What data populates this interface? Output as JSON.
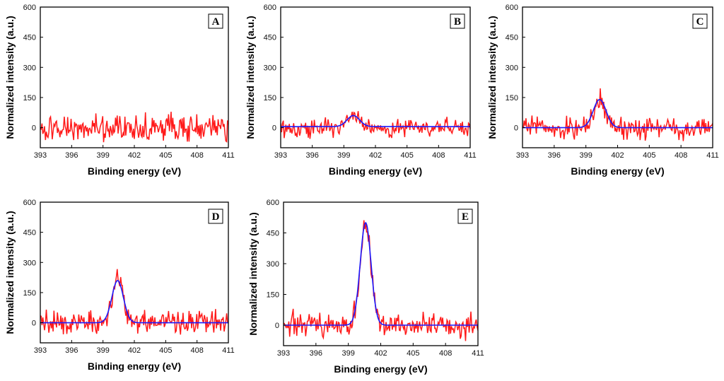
{
  "figure": {
    "x_title": "Binding energy (eV)",
    "y_title": "Normalized intensity (a.u.)",
    "x_ticks": [
      "393",
      "396",
      "399",
      "402",
      "405",
      "408",
      "411"
    ],
    "y_ticks": [
      "0",
      "150",
      "300",
      "450",
      "600"
    ]
  },
  "colors": {
    "raw": "#ff1a1a",
    "fit": "#1a1aff",
    "axis": "#000000"
  },
  "chart_data": [
    {
      "type": "line",
      "panel": "A",
      "title": "A",
      "xlabel": "Binding energy (eV)",
      "ylabel": "Normalized intensity (a.u.)",
      "xlim": [
        393,
        411
      ],
      "ylim": [
        -100,
        600
      ],
      "series": [
        {
          "name": "raw",
          "peak_center": 400.5,
          "peak_height": 0,
          "peak_sigma": 0.6,
          "noise": 45
        }
      ]
    },
    {
      "type": "line",
      "panel": "B",
      "title": "B",
      "xlabel": "Binding energy (eV)",
      "ylabel": "Normalized intensity (a.u.)",
      "xlim": [
        393,
        411
      ],
      "ylim": [
        -100,
        600
      ],
      "series": [
        {
          "name": "raw",
          "peak_center": 399.9,
          "peak_height": 55,
          "peak_sigma": 0.6,
          "noise": 30
        },
        {
          "name": "fit",
          "peak_center": 399.9,
          "peak_height": 55,
          "peak_sigma": 0.6,
          "baseline": 5
        }
      ]
    },
    {
      "type": "line",
      "panel": "C",
      "title": "C",
      "xlabel": "Binding energy (eV)",
      "ylabel": "Normalized intensity (a.u.)",
      "xlim": [
        393,
        411
      ],
      "ylim": [
        -100,
        600
      ],
      "series": [
        {
          "name": "raw",
          "peak_center": 400.3,
          "peak_height": 140,
          "peak_sigma": 0.6,
          "noise": 40
        },
        {
          "name": "fit",
          "peak_center": 400.3,
          "peak_height": 140,
          "peak_sigma": 0.6,
          "baseline": 0
        }
      ]
    },
    {
      "type": "line",
      "panel": "D",
      "title": "D",
      "xlabel": "Binding energy (eV)",
      "ylabel": "Normalized intensity (a.u.)",
      "xlim": [
        393,
        411
      ],
      "ylim": [
        -100,
        600
      ],
      "series": [
        {
          "name": "raw",
          "peak_center": 400.4,
          "peak_height": 210,
          "peak_sigma": 0.55,
          "noise": 40
        },
        {
          "name": "fit",
          "peak_center": 400.4,
          "peak_height": 210,
          "peak_sigma": 0.55,
          "baseline": 0
        }
      ]
    },
    {
      "type": "line",
      "panel": "E",
      "title": "E",
      "xlabel": "Binding energy (eV)",
      "ylabel": "Normalized intensity (a.u.)",
      "xlim": [
        393,
        411
      ],
      "ylim": [
        -100,
        600
      ],
      "series": [
        {
          "name": "raw",
          "peak_center": 400.6,
          "peak_height": 500,
          "peak_sigma": 0.5,
          "noise": 40
        },
        {
          "name": "fit",
          "peak_center": 400.6,
          "peak_height": 500,
          "peak_sigma": 0.5,
          "baseline": 0
        }
      ]
    }
  ]
}
